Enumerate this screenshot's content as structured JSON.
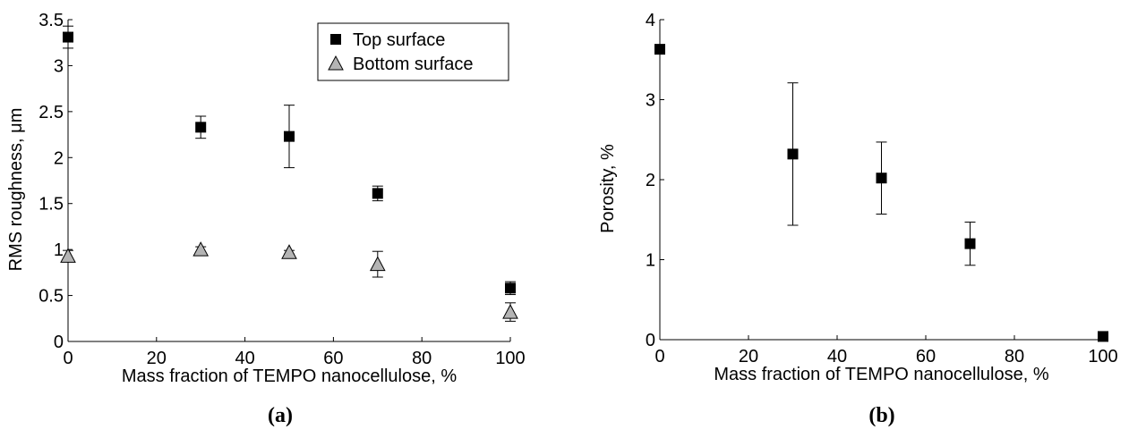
{
  "chart_data": [
    {
      "type": "scatter",
      "panel_label": "(a)",
      "xlabel": "Mass fraction of TEMPO nanocellulose, %",
      "ylabel": "RMS roughness, μm",
      "xlim": [
        0,
        100
      ],
      "ylim": [
        0,
        3.5
      ],
      "xticks": [
        0,
        20,
        40,
        60,
        80,
        100
      ],
      "yticks": [
        0,
        0.5,
        1,
        1.5,
        2,
        2.5,
        3,
        3.5
      ],
      "ytick_labels": [
        "0",
        "0.5",
        "1",
        "1.5",
        "2",
        "2.5",
        "3",
        "3.5"
      ],
      "grid": false,
      "legend_position": "top-right",
      "series": [
        {
          "name": "Top surface",
          "marker": "square",
          "color": "#000000",
          "x": [
            0,
            30,
            50,
            70,
            100
          ],
          "y": [
            3.31,
            2.33,
            2.23,
            1.61,
            0.58
          ],
          "err": [
            0.12,
            0.12,
            0.34,
            0.08,
            0.07
          ]
        },
        {
          "name": "Bottom surface",
          "marker": "triangle",
          "color": "#b4b4b4",
          "x": [
            0,
            30,
            50,
            70,
            100
          ],
          "y": [
            0.93,
            1.0,
            0.97,
            0.84,
            0.32
          ],
          "err": [
            0.06,
            0.03,
            0.02,
            0.14,
            0.1
          ]
        }
      ]
    },
    {
      "type": "scatter",
      "panel_label": "(b)",
      "xlabel": "Mass fraction of TEMPO nanocellulose, %",
      "ylabel": "Porosity, %",
      "xlim": [
        0,
        100
      ],
      "ylim": [
        0,
        4
      ],
      "xticks": [
        0,
        20,
        40,
        60,
        80,
        100
      ],
      "yticks": [
        0,
        1,
        2,
        3,
        4
      ],
      "ytick_labels": [
        "0",
        "1",
        "2",
        "3",
        "4"
      ],
      "grid": false,
      "series": [
        {
          "marker": "square",
          "color": "#000000",
          "x": [
            0,
            30,
            50,
            70,
            100
          ],
          "y": [
            3.63,
            2.32,
            2.02,
            1.2,
            0.04
          ],
          "err": [
            0,
            0.89,
            0.45,
            0.27,
            0
          ]
        }
      ]
    }
  ]
}
